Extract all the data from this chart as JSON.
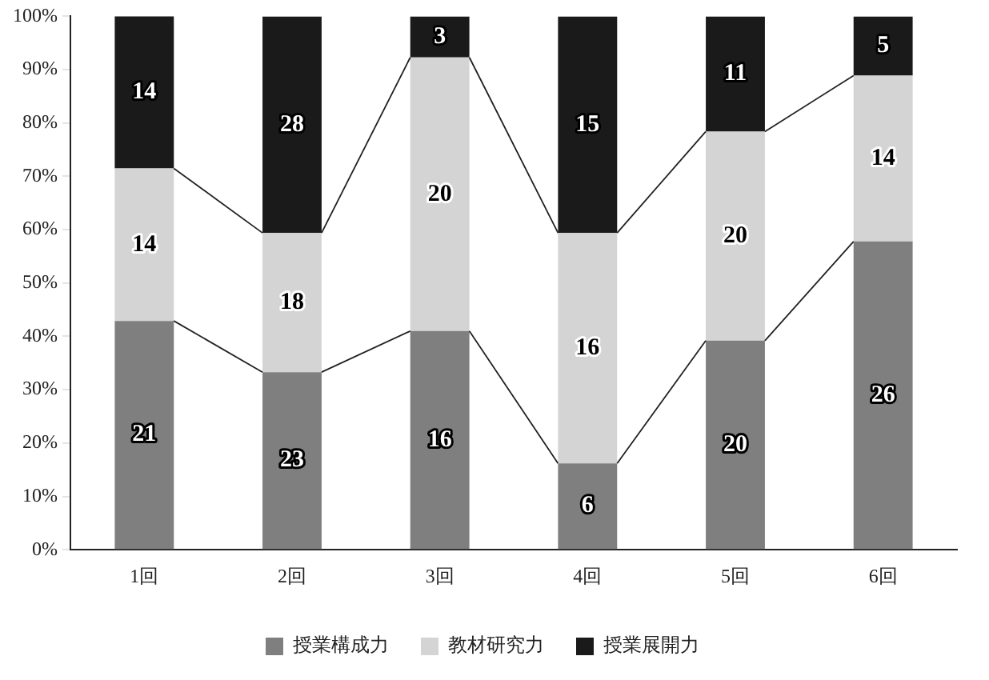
{
  "chart_data": {
    "type": "bar",
    "stacked": true,
    "categories": [
      "1回",
      "2回",
      "3回",
      "4回",
      "5回",
      "6回"
    ],
    "series": [
      {
        "name": "授業構成力",
        "color": "#7f7f7f",
        "values": [
          42.9,
          33.3,
          41.0,
          16.2,
          39.2,
          57.8
        ]
      },
      {
        "name": "教材研究力",
        "color": "#d4d4d4",
        "values": [
          28.6,
          26.1,
          51.3,
          43.2,
          39.2,
          31.1
        ]
      },
      {
        "name": "授業展開力",
        "color": "#1a1a1a",
        "values": [
          28.6,
          40.6,
          7.7,
          40.6,
          21.6,
          11.1
        ]
      }
    ],
    "annotations": [
      "21",
      "23",
      "16",
      "6",
      "20",
      "26",
      "14",
      "18",
      "20",
      "16",
      "20",
      "14",
      "14",
      "28",
      {
        "text": "3",
        "x": "3回",
        "y": 100
      },
      "15",
      "11",
      {
        "text": "5",
        "x": "6回",
        "y": 100
      }
    ],
    "ylim": [
      0,
      100
    ],
    "yticks": [
      {
        "value": 0,
        "label": "0%"
      },
      {
        "value": 10,
        "label": "10%"
      },
      {
        "value": 20,
        "label": "20%"
      },
      {
        "value": 30,
        "label": "30%"
      },
      {
        "value": 40,
        "label": "40%"
      },
      {
        "value": 50,
        "label": "50%"
      },
      {
        "value": 60,
        "label": "60%"
      },
      {
        "value": 70,
        "label": "70%"
      },
      {
        "value": 80,
        "label": "80%"
      },
      {
        "value": 90,
        "label": "90%"
      },
      {
        "value": 100,
        "label": "100%"
      }
    ],
    "grid": false,
    "legend": "bottom"
  }
}
